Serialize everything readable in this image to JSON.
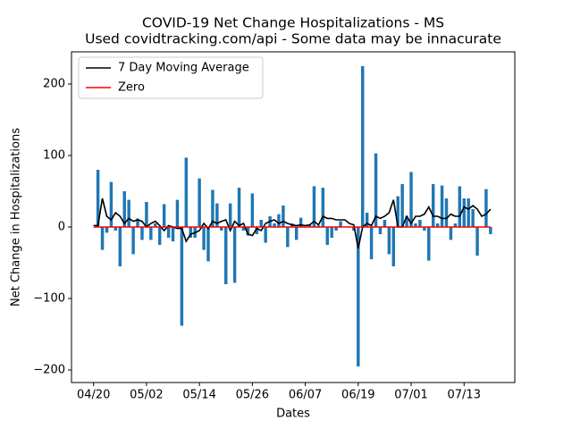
{
  "chart_data": {
    "type": "bar",
    "title": "COVID-19 Net Change Hospitalizations - MS",
    "subtitle": "Used covidtracking.com/api - Some data may be innacurate",
    "xlabel": "Dates",
    "ylabel": "Net Change in Hospitalizations",
    "categories": [
      "04/20",
      null,
      null,
      null,
      null,
      null,
      null,
      null,
      null,
      null,
      null,
      null,
      "05/02",
      null,
      null,
      null,
      null,
      null,
      null,
      null,
      null,
      null,
      null,
      null,
      "05/14",
      null,
      null,
      null,
      null,
      null,
      null,
      null,
      null,
      null,
      null,
      null,
      "05/26",
      null,
      null,
      null,
      null,
      null,
      null,
      null,
      null,
      null,
      null,
      null,
      "06/07",
      null,
      null,
      null,
      null,
      null,
      null,
      null,
      null,
      null,
      null,
      null,
      "06/19",
      null,
      null,
      null,
      null,
      null,
      null,
      null,
      null,
      null,
      null,
      null,
      "07/01",
      null,
      null,
      null,
      null,
      null,
      null,
      null,
      null,
      null,
      null,
      null,
      "07/13",
      null,
      null,
      null,
      null,
      null,
      null
    ],
    "values": [
      0,
      80,
      -32,
      -8,
      63,
      -5,
      -55,
      50,
      38,
      -38,
      12,
      -18,
      35,
      -18,
      5,
      -25,
      32,
      -15,
      -20,
      38,
      -138,
      97,
      -15,
      -15,
      68,
      -32,
      -48,
      52,
      33,
      -5,
      -80,
      33,
      -78,
      55,
      -5,
      -12,
      47,
      -10,
      10,
      -22,
      15,
      5,
      18,
      30,
      -28,
      5,
      -18,
      13,
      0,
      3,
      57,
      2,
      55,
      -25,
      -15,
      -5,
      8,
      0,
      0,
      -5,
      -195,
      225,
      20,
      -45,
      103,
      -10,
      10,
      -38,
      -55,
      43,
      60,
      15,
      77,
      5,
      10,
      -5,
      -47,
      60,
      5,
      58,
      40,
      -18,
      5,
      57,
      40,
      40,
      25,
      -40,
      0,
      53,
      -10
    ],
    "color": "#1f77b4",
    "series": [
      {
        "name": "7 Day Moving Average",
        "color": "#000000",
        "values": [
          2,
          2,
          40,
          15,
          10,
          20,
          15,
          5,
          12,
          8,
          10,
          8,
          0,
          5,
          8,
          2,
          -5,
          2,
          0,
          -2,
          -2,
          -20,
          -10,
          -8,
          -5,
          5,
          -2,
          8,
          5,
          8,
          10,
          -5,
          8,
          2,
          5,
          -10,
          -12,
          -2,
          -5,
          5,
          8,
          10,
          5,
          8,
          5,
          3,
          2,
          3,
          2,
          3,
          8,
          3,
          15,
          12,
          12,
          10,
          10,
          10,
          5,
          3,
          -30,
          0,
          5,
          2,
          15,
          12,
          15,
          20,
          38,
          0,
          0,
          15,
          5,
          15,
          15,
          18,
          28,
          15,
          15,
          12,
          12,
          18,
          15,
          15,
          28,
          25,
          30,
          25,
          15,
          18,
          25
        ]
      },
      {
        "name": "Zero",
        "color": "#ff0000",
        "values": [
          0,
          0,
          0,
          0,
          0,
          0,
          0,
          0,
          0,
          0,
          0,
          0,
          0,
          0,
          0,
          0,
          0,
          0,
          0,
          0,
          0,
          0,
          0,
          0,
          0,
          0,
          0,
          0,
          0,
          0,
          0,
          0,
          0,
          0,
          0,
          0,
          0,
          0,
          0,
          0,
          0,
          0,
          0,
          0,
          0,
          0,
          0,
          0,
          0,
          0,
          0,
          0,
          0,
          0,
          0,
          0,
          0,
          0,
          0,
          0,
          0,
          0,
          0,
          0,
          0,
          0,
          0,
          0,
          0,
          0,
          0,
          0,
          0,
          0,
          0,
          0,
          0,
          0,
          0,
          0,
          0,
          0,
          0,
          0,
          0,
          0,
          0,
          0,
          0,
          0,
          0
        ]
      }
    ],
    "xlim": [
      -5,
      95.5
    ],
    "ylim": [
      -217.5,
      245
    ],
    "yticks": [
      {
        "value": -200,
        "label": "−200"
      },
      {
        "value": -100,
        "label": "−100"
      },
      0,
      100,
      200
    ],
    "legend": "upper left"
  }
}
